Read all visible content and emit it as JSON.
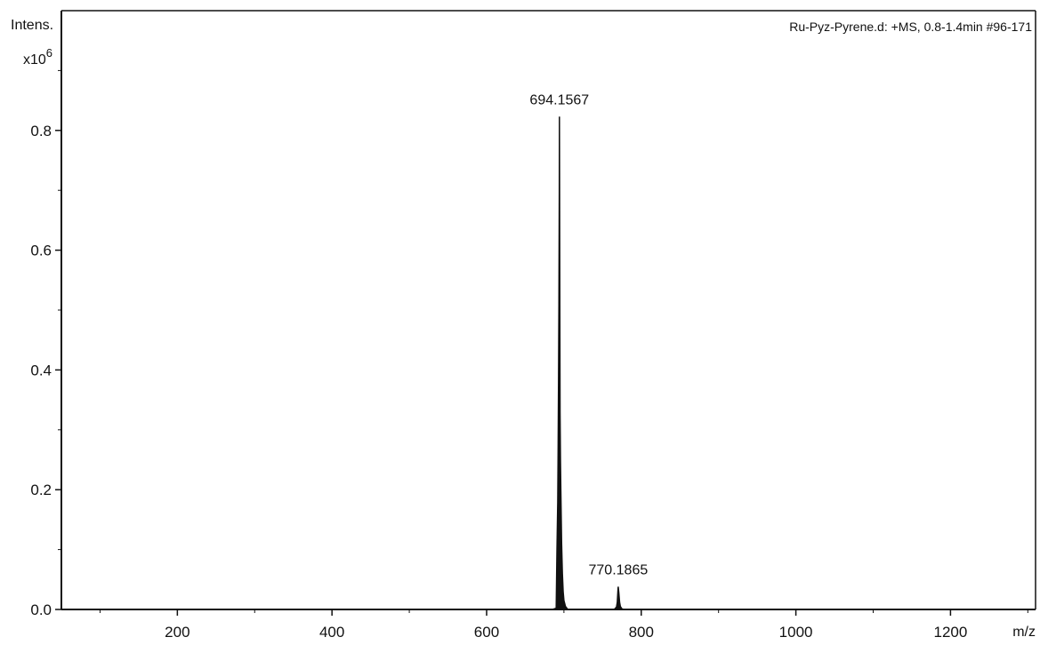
{
  "chart_data": {
    "type": "line",
    "title": "",
    "source_label": "Ru-Pyz-Pyrene.d: +MS, 0.8-1.4min #96-171",
    "xlabel": "m/z",
    "ylabel": "Intens.",
    "ylabel_multiplier": "x10",
    "ylabel_exponent": "6",
    "xlim": [
      50,
      1310
    ],
    "ylim": [
      0,
      1.0
    ],
    "x_major_ticks": [
      200,
      400,
      600,
      800,
      1000,
      1200
    ],
    "x_major_tick_labels": [
      "200",
      "400",
      "600",
      "800",
      "1000",
      "1200"
    ],
    "y_major_ticks": [
      0.0,
      0.2,
      0.4,
      0.6,
      0.8
    ],
    "y_major_tick_labels": [
      "0.0",
      "0.2",
      "0.4",
      "0.6",
      "0.8"
    ],
    "grid": false,
    "series": [
      {
        "values_unit": "x10^6",
        "x": [
          685,
          690,
          691,
          692,
          692.5,
          693,
          693.5,
          694,
          694.1567,
          694.5,
          695,
          695.5,
          696,
          697,
          698,
          699,
          700,
          702,
          705,
          765,
          768,
          769,
          770,
          770.1865,
          771,
          772,
          773,
          775,
          778
        ],
        "y": [
          0,
          0.002,
          0.1,
          0.18,
          0.27,
          0.38,
          0.51,
          0.7,
          0.823,
          0.62,
          0.33,
          0.25,
          0.2,
          0.11,
          0.06,
          0.03,
          0.015,
          0.005,
          0,
          0,
          0.004,
          0.012,
          0.035,
          0.038,
          0.028,
          0.012,
          0.005,
          0.001,
          0
        ]
      }
    ],
    "annotations": [
      {
        "text": "694.1567",
        "x": 694.1567,
        "y": 0.823
      },
      {
        "text": "770.1865",
        "x": 770.1865,
        "y": 0.038
      }
    ]
  }
}
